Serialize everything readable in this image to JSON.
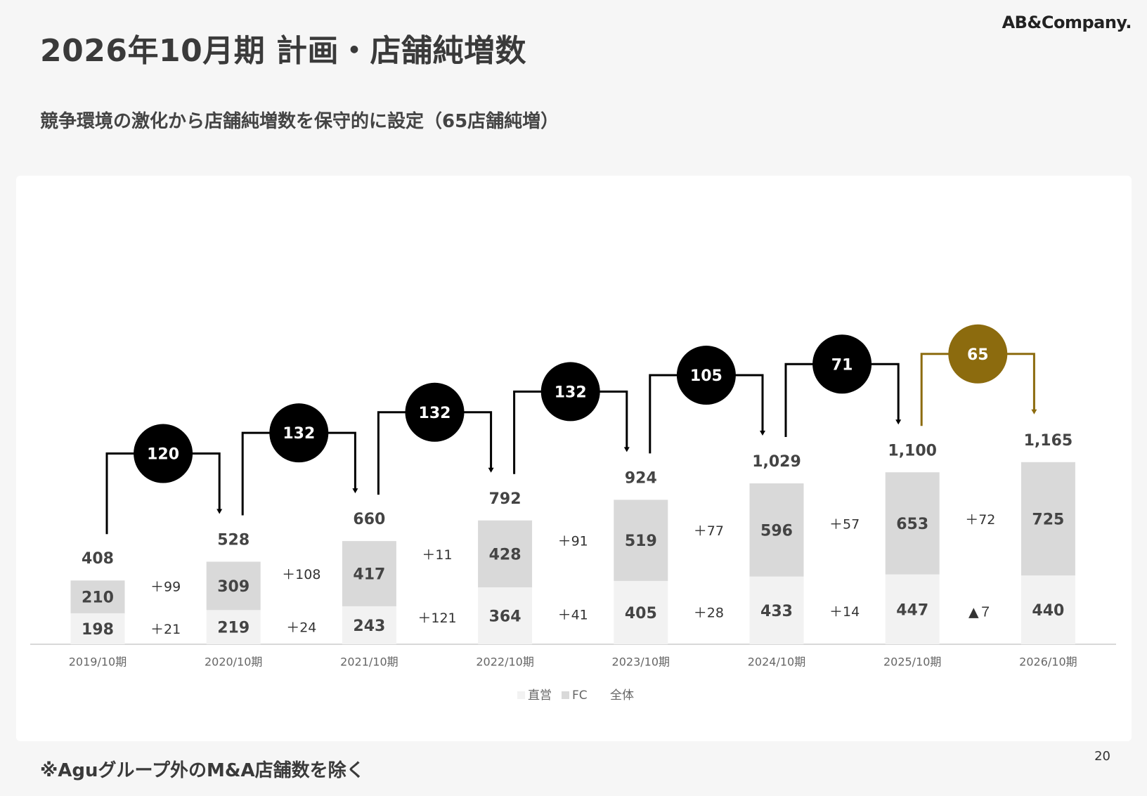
{
  "title": "2026年10月期 計画・店舗純増数",
  "logo": "AB&Company.",
  "subtitle": "競争環境の激化から店舗純増数を保守的に設定（65店舗純増）",
  "footnote": "※Aguグループ外のM&A店舗数を除く",
  "page_number": "20",
  "colors": {
    "direct": "#f2f2f2",
    "fc": "#d9d9d9",
    "badge": "#000000",
    "badge_highlight": "#8c6b0e",
    "axis": "#cccccc"
  },
  "chart_data": {
    "type": "bar",
    "stacked": true,
    "categories": [
      "2019/10期",
      "2020/10期",
      "2021/10期",
      "2022/10期",
      "2023/10期",
      "2024/10期",
      "2025/10期",
      "2026/10期"
    ],
    "series": [
      {
        "name": "直営",
        "values": [
          198,
          219,
          243,
          364,
          405,
          433,
          447,
          440
        ]
      },
      {
        "name": "FC",
        "values": [
          210,
          309,
          417,
          428,
          519,
          596,
          653,
          725
        ]
      }
    ],
    "totals": [
      "408",
      "528",
      "660",
      "792",
      "924",
      "1,029",
      "1,100",
      "1,165"
    ],
    "total_series_name": "全体",
    "fc_increase_labels": [
      "＋99",
      "＋108",
      "＋11",
      "＋91",
      "＋77",
      "＋57",
      "＋72"
    ],
    "direct_increase_labels": [
      "＋21",
      "＋24",
      "＋121",
      "＋41",
      "＋28",
      "＋14",
      "▲７"
    ],
    "net_increase": [
      "120",
      "132",
      "132",
      "132",
      "105",
      "71",
      "65"
    ],
    "highlight_last": true,
    "ylim": [
      0,
      1700
    ],
    "legend_position": "bottom-center",
    "grid": false
  }
}
